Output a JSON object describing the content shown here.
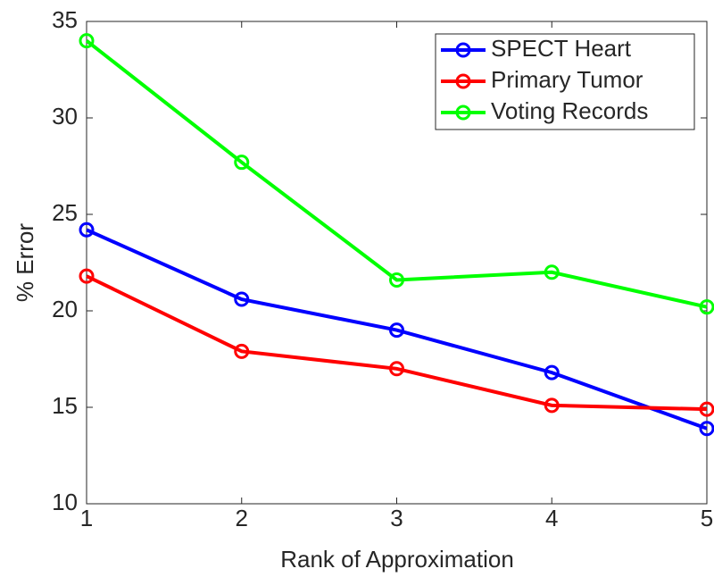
{
  "chart_data": {
    "type": "line",
    "x_label": "Rank of Approximation",
    "y_label": "% Error",
    "x": [
      1,
      2,
      3,
      4,
      5
    ],
    "series": [
      {
        "name": "SPECT Heart",
        "color": "#0000ff",
        "values": [
          24.2,
          20.6,
          19.0,
          16.8,
          13.9
        ]
      },
      {
        "name": "Primary Tumor",
        "color": "#ff0000",
        "values": [
          21.8,
          17.9,
          17.0,
          15.1,
          14.9
        ]
      },
      {
        "name": "Voting Records",
        "color": "#00ff00",
        "values": [
          34.0,
          27.7,
          21.6,
          22.0,
          20.2
        ]
      }
    ],
    "xlim": [
      1,
      5
    ],
    "xticks": [
      1,
      2,
      3,
      4,
      5
    ],
    "ylim": [
      10,
      35
    ],
    "yticks": [
      10,
      15,
      20,
      25,
      30,
      35
    ],
    "grid": false,
    "legend": "top-right"
  }
}
